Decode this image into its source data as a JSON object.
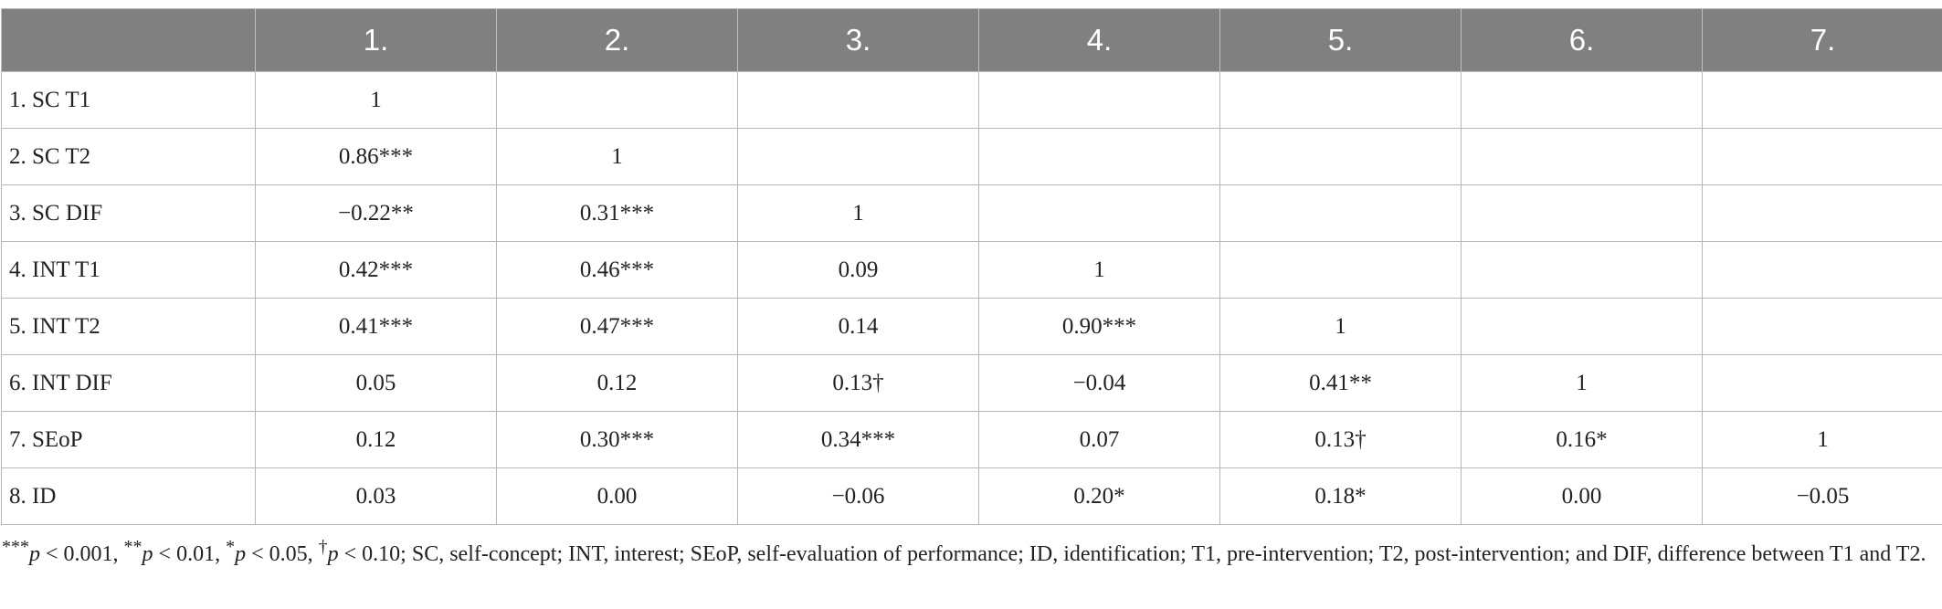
{
  "table": {
    "corner": "",
    "columns": [
      "1.",
      "2.",
      "3.",
      "4.",
      "5.",
      "6.",
      "7."
    ],
    "rows": [
      {
        "label": "1. SC T1",
        "cells": [
          "1",
          "",
          "",
          "",
          "",
          "",
          ""
        ]
      },
      {
        "label": "2. SC T2",
        "cells": [
          "0.86***",
          "1",
          "",
          "",
          "",
          "",
          ""
        ]
      },
      {
        "label": "3. SC DIF",
        "cells": [
          "−0.22**",
          "0.31***",
          "1",
          "",
          "",
          "",
          ""
        ]
      },
      {
        "label": "4. INT T1",
        "cells": [
          "0.42***",
          "0.46***",
          "0.09",
          "1",
          "",
          "",
          ""
        ]
      },
      {
        "label": "5. INT T2",
        "cells": [
          "0.41***",
          "0.47***",
          "0.14",
          "0.90***",
          "1",
          "",
          ""
        ]
      },
      {
        "label": "6. INT DIF",
        "cells": [
          "0.05",
          "0.12",
          "0.13†",
          "−0.04",
          "0.41**",
          "1",
          ""
        ]
      },
      {
        "label": "7. SEoP",
        "cells": [
          "0.12",
          "0.30***",
          "0.34***",
          "0.07",
          "0.13†",
          "0.16*",
          "1"
        ]
      },
      {
        "label": "8. ID",
        "cells": [
          "0.03",
          "0.00",
          "−0.06",
          "0.20*",
          "0.18*",
          "0.00",
          "−0.05"
        ]
      }
    ]
  },
  "footnote": {
    "s1": "***",
    "p1": "p",
    "t1": " < 0.001, ",
    "s2": "**",
    "p2": "p",
    "t2": " < 0.01, ",
    "s3": "*",
    "p3": "p",
    "t3": " < 0.05, ",
    "s4": "†",
    "p4": "p",
    "t4": " < 0.10; SC, self-concept; INT, interest; SEoP, self-evaluation of performance; ID, identification; T1, pre-intervention; T2, post-intervention; and DIF, difference between T1 and T2."
  }
}
